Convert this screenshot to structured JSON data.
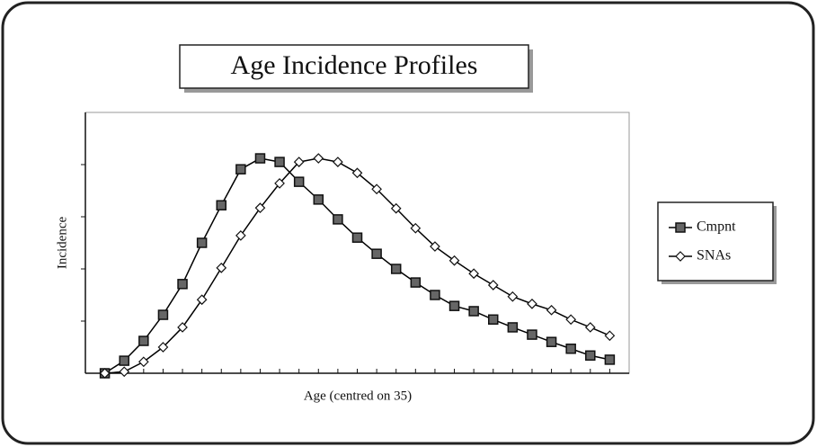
{
  "chart_data": {
    "type": "line",
    "title": "Age Incidence Profiles",
    "x_label": "Age (centred on 35)",
    "y_label": "Incidence",
    "x": [
      0,
      1,
      2,
      3,
      4,
      5,
      6,
      7,
      8,
      9,
      10,
      11,
      12,
      13,
      14,
      15,
      16,
      17,
      18,
      19,
      20,
      21,
      22,
      23,
      24,
      25,
      26
    ],
    "xlim": [
      -1,
      27
    ],
    "xticks": [
      0,
      1,
      2,
      3,
      4,
      5,
      6,
      7,
      8,
      9,
      10,
      11,
      12,
      13,
      14,
      15,
      16,
      17,
      18,
      19,
      20,
      21,
      22,
      23,
      24,
      25,
      26
    ],
    "ylim": [
      0,
      5
    ],
    "yticks": [
      1,
      2,
      3,
      4
    ],
    "legend": "right",
    "series": [
      {
        "name": "Cmpnt",
        "color": "#000000",
        "marker": "square",
        "values": [
          0,
          0.24,
          0.62,
          1.12,
          1.71,
          2.5,
          3.22,
          3.91,
          4.12,
          4.05,
          3.67,
          3.33,
          2.95,
          2.6,
          2.29,
          2.0,
          1.74,
          1.5,
          1.29,
          1.19,
          1.03,
          0.88,
          0.74,
          0.6,
          0.47,
          0.34,
          0.26
        ]
      },
      {
        "name": "SNAs",
        "color": "#000000",
        "marker": "diamond",
        "values": [
          0,
          0.03,
          0.22,
          0.5,
          0.88,
          1.41,
          2.02,
          2.64,
          3.17,
          3.64,
          4.05,
          4.12,
          4.05,
          3.84,
          3.53,
          3.16,
          2.78,
          2.43,
          2.16,
          1.91,
          1.69,
          1.47,
          1.33,
          1.21,
          1.03,
          0.88,
          0.72
        ]
      }
    ]
  }
}
